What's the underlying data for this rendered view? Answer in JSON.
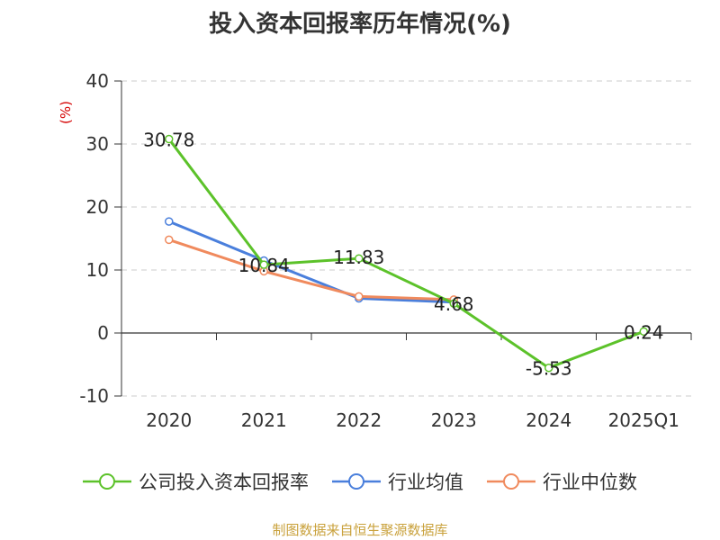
{
  "chart_data": {
    "type": "line",
    "title": "投入资本回报率历年情况(%)",
    "ylabel": "(%)",
    "categories": [
      "2020",
      "2021",
      "2022",
      "2023",
      "2024",
      "2025Q1"
    ],
    "ylim": [
      -10,
      40
    ],
    "yticks": [
      -10,
      0,
      10,
      20,
      30,
      40
    ],
    "grid": true,
    "legend_position": "bottom",
    "series": [
      {
        "name": "公司投入资本回报率",
        "color": "#5cc22a",
        "values": [
          30.78,
          10.84,
          11.83,
          4.68,
          -5.53,
          0.24
        ],
        "labels": [
          "30.78",
          "10.84",
          "11.83",
          "4.68",
          "-5.53",
          "0.24"
        ]
      },
      {
        "name": "行业均值",
        "color": "#4a7fdc",
        "values": [
          17.7,
          11.5,
          5.5,
          4.9,
          null,
          null
        ]
      },
      {
        "name": "行业中位数",
        "color": "#f08a5d",
        "values": [
          14.8,
          9.8,
          5.8,
          5.3,
          null,
          null
        ]
      }
    ]
  },
  "source": "制图数据来自恒生聚源数据库"
}
